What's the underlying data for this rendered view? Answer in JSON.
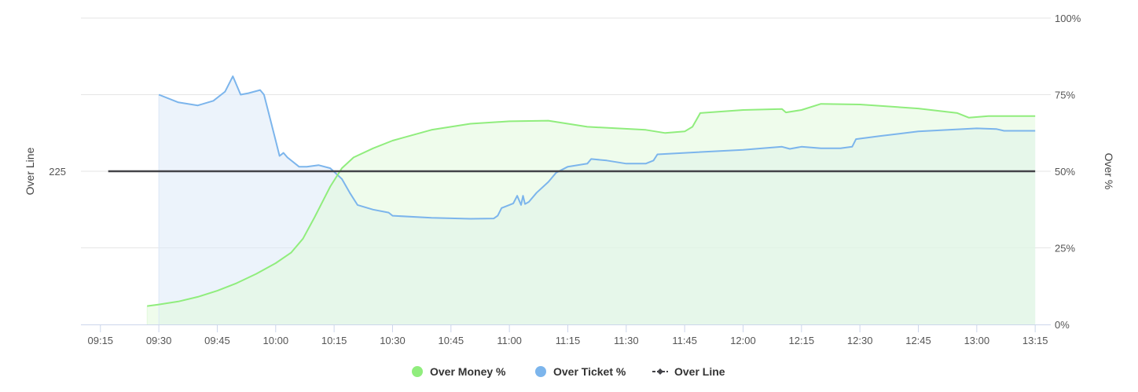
{
  "chart_data": {
    "type": "area",
    "x_ticks": [
      "09:15",
      "09:30",
      "09:45",
      "10:00",
      "10:15",
      "10:30",
      "10:45",
      "11:00",
      "11:15",
      "11:30",
      "11:45",
      "12:00",
      "12:15",
      "12:30",
      "12:45",
      "13:00",
      "13:15"
    ],
    "xlim": [
      "09:10",
      "13:19"
    ],
    "y_right": {
      "title": "Over %",
      "ylim": [
        0,
        100
      ],
      "ticks": [
        "0%",
        "25%",
        "50%",
        "75%",
        "100%"
      ]
    },
    "y_left": {
      "title": "Over Line",
      "ticks": [
        "225"
      ]
    },
    "grid": true,
    "legend_position": "bottom-center",
    "series": [
      {
        "name": "Over Money %",
        "color": "#90ed7d",
        "fill": "#e2f9dc",
        "points": [
          [
            "09:27",
            6
          ],
          [
            "09:30",
            6.5
          ],
          [
            "09:35",
            7.5
          ],
          [
            "09:40",
            9
          ],
          [
            "09:45",
            11
          ],
          [
            "09:50",
            13.5
          ],
          [
            "09:55",
            16.5
          ],
          [
            "10:00",
            20
          ],
          [
            "10:04",
            23.5
          ],
          [
            "10:07",
            28
          ],
          [
            "10:10",
            35
          ],
          [
            "10:14",
            45
          ],
          [
            "10:17",
            51
          ],
          [
            "10:20",
            54.5
          ],
          [
            "10:25",
            57.5
          ],
          [
            "10:30",
            60
          ],
          [
            "10:40",
            63.5
          ],
          [
            "10:50",
            65.5
          ],
          [
            "11:00",
            66.3
          ],
          [
            "11:10",
            66.5
          ],
          [
            "11:20",
            64.5
          ],
          [
            "11:35",
            63.5
          ],
          [
            "11:40",
            62.5
          ],
          [
            "11:45",
            63
          ],
          [
            "11:47",
            64.5
          ],
          [
            "11:49",
            69
          ],
          [
            "12:00",
            70
          ],
          [
            "12:10",
            70.3
          ],
          [
            "12:11",
            69.2
          ],
          [
            "12:15",
            70
          ],
          [
            "12:20",
            72
          ],
          [
            "12:30",
            71.8
          ],
          [
            "12:45",
            70.5
          ],
          [
            "12:55",
            69
          ],
          [
            "12:58",
            67.5
          ],
          [
            "13:03",
            68
          ],
          [
            "13:15",
            68
          ]
        ]
      },
      {
        "name": "Over Ticket %",
        "color": "#7cb5ec",
        "fill": "#dce9f7",
        "points": [
          [
            "09:30",
            75
          ],
          [
            "09:35",
            72.5
          ],
          [
            "09:40",
            71.5
          ],
          [
            "09:44",
            73
          ],
          [
            "09:47",
            76
          ],
          [
            "09:49",
            81
          ],
          [
            "09:51",
            75
          ],
          [
            "09:53",
            75.5
          ],
          [
            "09:56",
            76.5
          ],
          [
            "09:57",
            75
          ],
          [
            "09:58",
            70
          ],
          [
            "10:00",
            60
          ],
          [
            "10:01",
            55
          ],
          [
            "10:02",
            56
          ],
          [
            "10:03",
            54.5
          ],
          [
            "10:06",
            51.5
          ],
          [
            "10:08",
            51.5
          ],
          [
            "10:11",
            52
          ],
          [
            "10:14",
            51
          ],
          [
            "10:17",
            47.5
          ],
          [
            "10:19",
            43
          ],
          [
            "10:21",
            39
          ],
          [
            "10:25",
            37.5
          ],
          [
            "10:29",
            36.5
          ],
          [
            "10:30",
            35.5
          ],
          [
            "10:40",
            34.8
          ],
          [
            "10:50",
            34.5
          ],
          [
            "10:56",
            34.6
          ],
          [
            "10:57",
            35.5
          ],
          [
            "10:58",
            38
          ],
          [
            "11:00",
            39
          ],
          [
            "11:01",
            39.5
          ],
          [
            "11:02",
            42
          ],
          [
            "11:03",
            39
          ],
          [
            "11:03.5",
            42
          ],
          [
            "11:04",
            39.3
          ],
          [
            "11:05",
            40
          ],
          [
            "11:07",
            43
          ],
          [
            "11:10",
            46.5
          ],
          [
            "11:12",
            49.5
          ],
          [
            "11:15",
            51.5
          ],
          [
            "11:20",
            52.5
          ],
          [
            "11:21",
            54
          ],
          [
            "11:25",
            53.5
          ],
          [
            "11:30",
            52.5
          ],
          [
            "11:35",
            52.5
          ],
          [
            "11:37",
            53.5
          ],
          [
            "11:38",
            55.5
          ],
          [
            "11:45",
            56
          ],
          [
            "12:00",
            57
          ],
          [
            "12:05",
            57.5
          ],
          [
            "12:10",
            58
          ],
          [
            "12:12",
            57.3
          ],
          [
            "12:15",
            58
          ],
          [
            "12:20",
            57.5
          ],
          [
            "12:25",
            57.5
          ],
          [
            "12:28",
            58
          ],
          [
            "12:29",
            60.5
          ],
          [
            "12:35",
            61.5
          ],
          [
            "12:45",
            63
          ],
          [
            "13:00",
            64
          ],
          [
            "13:05",
            63.8
          ],
          [
            "13:07",
            63.2
          ],
          [
            "13:15",
            63.2
          ]
        ]
      },
      {
        "name": "Over Line",
        "color": "#434348",
        "value_label": "225",
        "y_pct": 50,
        "x_range": [
          "09:17",
          "13:15"
        ]
      }
    ]
  }
}
